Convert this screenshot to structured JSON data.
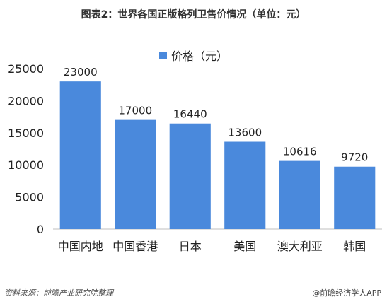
{
  "title": "图表2：世界各国正版格列卫售价情况（单位：元）",
  "source": "资料来源：前瞻产业研究院整理",
  "credit": "@前瞻经济学人APP",
  "colors": {
    "bar": "#4a89dc"
  },
  "chart_data": {
    "type": "bar",
    "categories": [
      "中国内地",
      "中国香港",
      "日本",
      "美国",
      "澳大利亚",
      "韩国"
    ],
    "series": [
      {
        "name": "价格（元）",
        "values": [
          23000,
          17000,
          16440,
          13600,
          10616,
          9720
        ]
      }
    ],
    "ylim": [
      0,
      25000
    ],
    "yticks": [
      0,
      5000,
      10000,
      15000,
      20000,
      25000
    ],
    "legend_position": "top",
    "grid": false
  }
}
